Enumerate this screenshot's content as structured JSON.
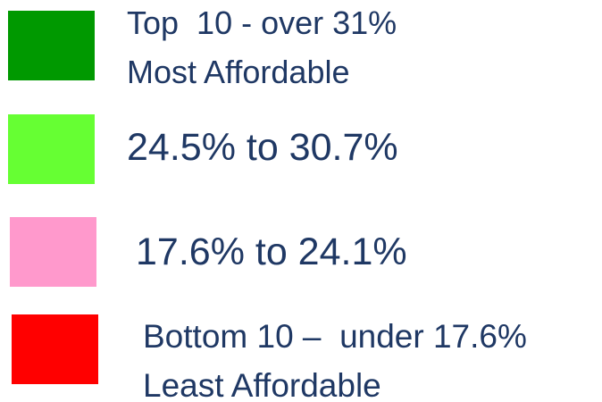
{
  "legend": {
    "items": [
      {
        "color": "#009900",
        "lines": [
          "Top  10 - over 31%",
          "Most Affordable"
        ]
      },
      {
        "color": "#66ff33",
        "lines": [
          "24.5% to 30.7%"
        ]
      },
      {
        "color": "#ff99cc",
        "lines": [
          "17.6% to 24.1%"
        ]
      },
      {
        "color": "#ff0000",
        "lines": [
          "Bottom 10 –  under 17.6%",
          "Least Affordable"
        ]
      }
    ]
  }
}
